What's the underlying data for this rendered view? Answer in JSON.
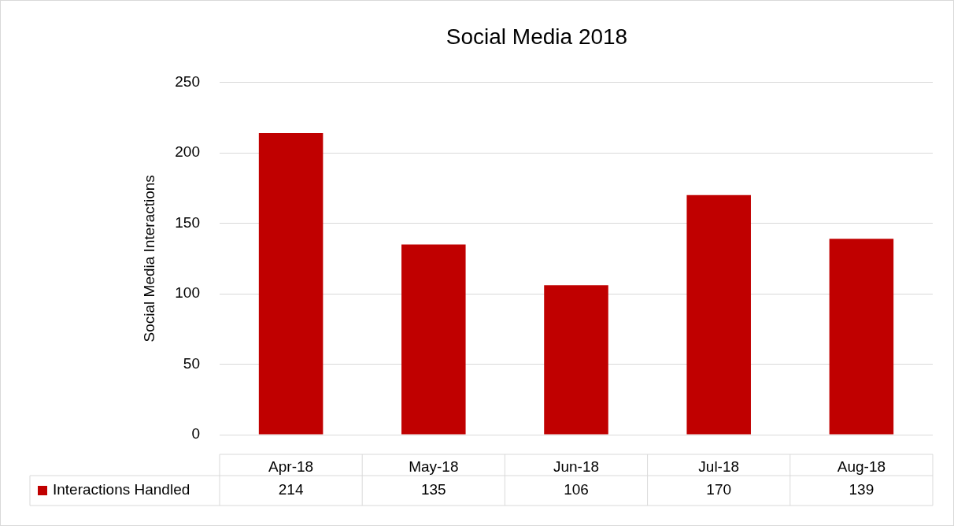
{
  "chart_data": {
    "type": "bar",
    "title": "Social Media 2018",
    "ylabel": "Social Media Interactions",
    "categories": [
      "Apr-18",
      "May-18",
      "Jun-18",
      "Jul-18",
      "Aug-18"
    ],
    "series": [
      {
        "name": "Interactions Handled",
        "color": "#c00000",
        "values": [
          214,
          135,
          106,
          170,
          139
        ]
      }
    ],
    "ylim": [
      0,
      250
    ],
    "yticks": [
      0,
      50,
      100,
      150,
      200,
      250
    ],
    "grid": "y",
    "legend": "bottom",
    "data_labels": true
  }
}
